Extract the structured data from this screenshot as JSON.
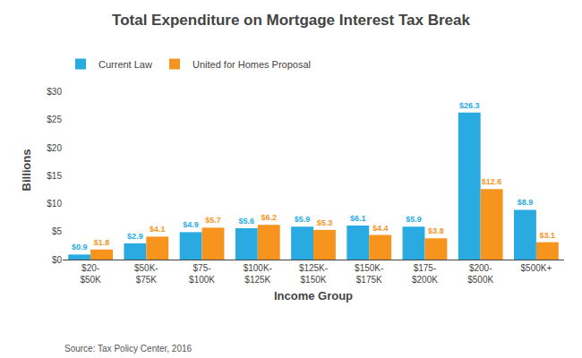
{
  "chart_data": {
    "type": "bar",
    "title": "Total Expenditure on Mortgage Interest Tax Break",
    "xlabel": "Income Group",
    "ylabel": "Billions",
    "categories": [
      "$20-\n$50K",
      "$50K-\n$75K",
      "$75-\n$100K",
      "$100K-\n$125K",
      "$125K-\n$150K",
      "$150K-\n$175K",
      "$175-\n$200K",
      "$200-\n$500K",
      "$500K+"
    ],
    "series": [
      {
        "name": "Current Law",
        "color": "#29ABE2",
        "values": [
          0.9,
          2.9,
          4.9,
          5.6,
          5.9,
          6.1,
          5.9,
          26.3,
          8.9
        ],
        "value_labels": [
          "$0.9",
          "$2.9",
          "$4.9",
          "$5.6",
          "$5.9",
          "$6.1",
          "$5.9",
          "$26.3",
          "$8.9"
        ]
      },
      {
        "name": "United for Homes Proposal",
        "color": "#F7941D",
        "values": [
          1.8,
          4.1,
          5.7,
          6.2,
          5.3,
          4.4,
          3.8,
          12.6,
          3.1
        ],
        "value_labels": [
          "$1.8",
          "$4.1",
          "$5.7",
          "$6.2",
          "$5.3",
          "$4.4",
          "$3.8",
          "$12.6",
          "$3.1"
        ]
      }
    ],
    "ylim": [
      0,
      32
    ],
    "yticks": [
      {
        "value": 0,
        "label": "$0"
      },
      {
        "value": 5,
        "label": "$5"
      },
      {
        "value": 10,
        "label": "$10"
      },
      {
        "value": 15,
        "label": "$15"
      },
      {
        "value": 20,
        "label": "$20"
      },
      {
        "value": 25,
        "label": "$25"
      },
      {
        "value": 30,
        "label": "$30"
      }
    ],
    "grid": false,
    "legend": "upper left",
    "data_labels": true,
    "annotations": [
      "Source: Tax Policy Center, 2016"
    ]
  }
}
